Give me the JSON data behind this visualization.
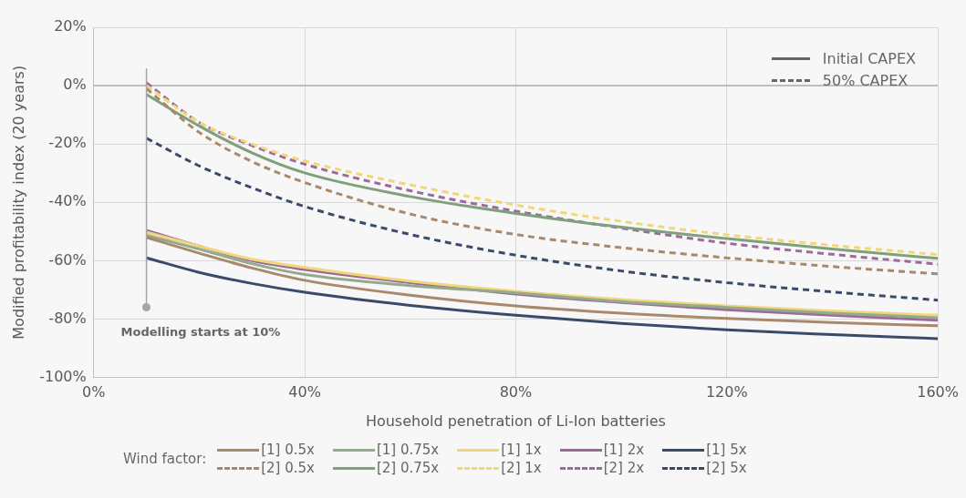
{
  "chart_data": {
    "type": "line",
    "xlabel": "Household penetration of Li-Ion batteries",
    "ylabel": "Modified profitability index (20 years)",
    "legend_title": "Wind factor:",
    "legend": "bottom",
    "grid": true,
    "marker": "none",
    "x": [
      10,
      20,
      30,
      40,
      60,
      80,
      100,
      120,
      140,
      160
    ],
    "xlim": [
      0,
      160
    ],
    "xticks": [
      {
        "value": 0,
        "label": "0%"
      },
      {
        "value": 40,
        "label": "40%"
      },
      {
        "value": 80,
        "label": "80%"
      },
      {
        "value": 120,
        "label": "120%"
      },
      {
        "value": 160,
        "label": "160%"
      }
    ],
    "ylim": [
      -100,
      20
    ],
    "yticks": [
      {
        "value": -100,
        "label": "-100%"
      },
      {
        "value": -80,
        "label": "-80%"
      },
      {
        "value": -60,
        "label": "-60%"
      },
      {
        "value": -40,
        "label": "-40%"
      },
      {
        "value": -20,
        "label": "-20%"
      },
      {
        "value": 0,
        "label": "0%"
      },
      {
        "value": 20,
        "label": "20%"
      }
    ],
    "series": [
      {
        "name": "[1] 0.5x",
        "color": "#a9896b",
        "line_style": "solid",
        "values": [
          -52,
          -57.4,
          -62.5,
          -66.7,
          -71.8,
          -75.5,
          -78,
          -79.8,
          -81.2,
          -82.3
        ]
      },
      {
        "name": "[1] 0.75x",
        "color": "#93ab8c",
        "line_style": "solid",
        "values": [
          -51.3,
          -56,
          -61,
          -64.7,
          -68.5,
          -71,
          -74,
          -76,
          -78,
          -79.5
        ]
      },
      {
        "name": "[1] 1x",
        "color": "#f2d77a",
        "line_style": "solid",
        "values": [
          -50.2,
          -55,
          -59.5,
          -62.3,
          -67,
          -70.5,
          -73.3,
          -75.5,
          -77.2,
          -78.7
        ]
      },
      {
        "name": "[1] 2x",
        "color": "#9b6a9b",
        "line_style": "solid",
        "values": [
          -49.6,
          -55,
          -60,
          -63,
          -67.5,
          -71.4,
          -74.3,
          -76.8,
          -78.7,
          -80.4
        ]
      },
      {
        "name": "[1] 5x",
        "color": "#3b4a6b",
        "line_style": "solid",
        "values": [
          -59,
          -64,
          -67.8,
          -70.8,
          -75.3,
          -78.7,
          -81.5,
          -83.7,
          -85.3,
          -86.7
        ]
      },
      {
        "name": "[2] 0.5x",
        "color": "#a9896b",
        "line_style": "dashed",
        "values": [
          -1,
          -16,
          -26,
          -33.2,
          -44,
          -51,
          -55.5,
          -59,
          -62,
          -64.5
        ]
      },
      {
        "name": "[2] 0.75x",
        "color": "#7fa07a",
        "line_style": "solid",
        "values": [
          -3,
          -13.8,
          -23,
          -29.9,
          -38,
          -43.8,
          -48.5,
          -52.4,
          -56,
          -59.2
        ]
      },
      {
        "name": "[2] 1x",
        "color": "#f2d77a",
        "line_style": "dashed",
        "values": [
          0,
          -12.6,
          -20,
          -25.8,
          -34,
          -40.9,
          -46.5,
          -51.1,
          -54.7,
          -57.9
        ]
      },
      {
        "name": "[2] 2x",
        "color": "#9b6a9b",
        "line_style": "dashed",
        "values": [
          1,
          -12.6,
          -20.5,
          -26.9,
          -36,
          -43,
          -48.8,
          -54,
          -57.8,
          -61.2
        ]
      },
      {
        "name": "[2] 5x",
        "color": "#3b4a6b",
        "line_style": "dashed",
        "values": [
          -18,
          -27.5,
          -35,
          -41.4,
          -51,
          -58.1,
          -63.5,
          -67.5,
          -70.7,
          -73.5
        ]
      }
    ],
    "ref_lines": [
      {
        "axis": "x",
        "value": 10,
        "label": "Modelling starts at 10%",
        "color": "#a6a6a6"
      }
    ],
    "annotations": [
      "Initial CAPEX",
      "50% CAPEX"
    ]
  }
}
